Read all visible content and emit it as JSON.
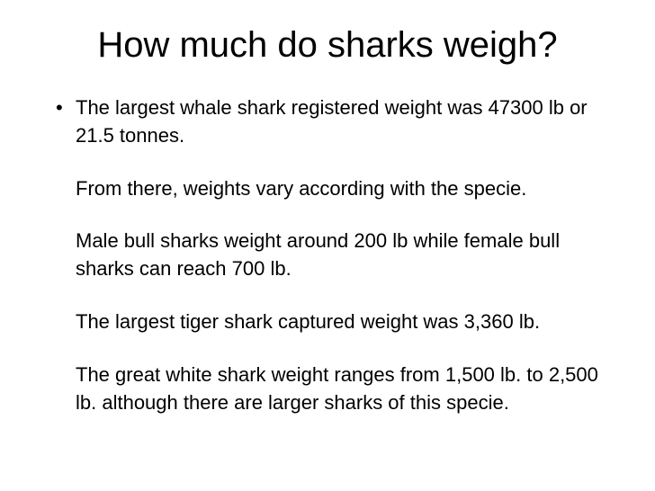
{
  "slide": {
    "title": "How much do sharks weigh?",
    "bullet": {
      "paragraphs": [
        "The largest whale shark registered weight was 47300 lb or 21.5 tonnes.",
        "From there, weights vary according with the specie.",
        "Male bull sharks weight around 200 lb while female bull sharks can reach 700 lb.",
        "The largest tiger shark captured weight was 3,360 lb.",
        "The great white shark weight ranges from 1,500 lb. to 2,500 lb. although there are larger sharks of this specie."
      ]
    }
  },
  "style": {
    "background_color": "#ffffff",
    "text_color": "#000000",
    "title_fontsize": 40,
    "body_fontsize": 22,
    "font_family": "Arial"
  }
}
